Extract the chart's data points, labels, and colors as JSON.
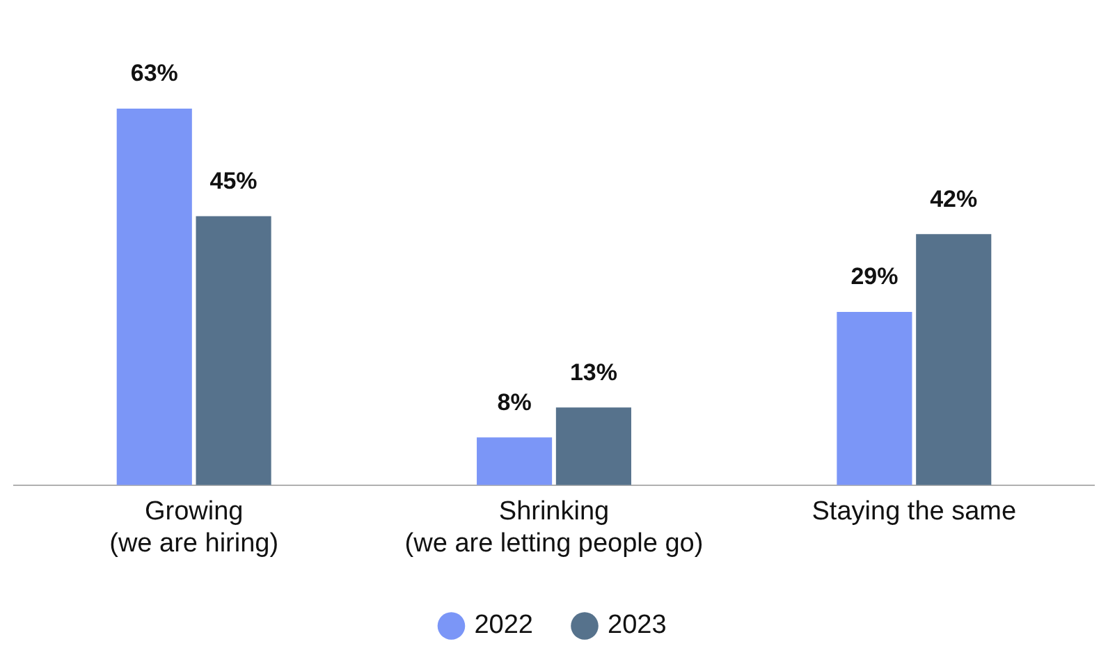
{
  "chart_data": {
    "type": "bar",
    "categories": [
      "Growing\n(we are hiring)",
      "Shrinking\n(we are letting people go)",
      "Staying the same"
    ],
    "series": [
      {
        "name": "2022",
        "color": "#7b96f7",
        "values": [
          63,
          8,
          29
        ],
        "value_labels": [
          "63%",
          "8%",
          "29%"
        ]
      },
      {
        "name": "2023",
        "color": "#56728c",
        "values": [
          45,
          13,
          42
        ],
        "value_labels": [
          "45%",
          "13%",
          "42%"
        ]
      }
    ],
    "legend": "bottom",
    "grid": false
  }
}
